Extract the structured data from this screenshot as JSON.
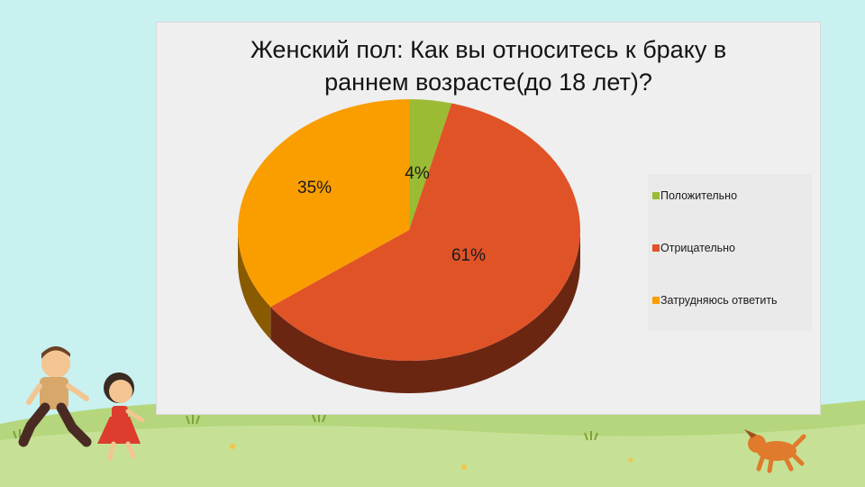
{
  "chart_data": {
    "type": "pie",
    "title_lines": [
      "Женский пол: Как вы относитесь к браку в",
      "раннем возрасте(до 18 лет)?"
    ],
    "categories": [
      "Положительно",
      "Отрицательно",
      "Затрудняюсь ответить"
    ],
    "values": [
      4,
      61,
      35
    ],
    "data_labels": [
      "4%",
      "61%",
      "35%"
    ],
    "colors": [
      "#9bbb34",
      "#e05327",
      "#fa9e00"
    ],
    "side_colors": [
      "#5c7019",
      "#6b2612",
      "#8a5a00"
    ],
    "legend_position": "right",
    "three_d": true
  },
  "colors": {
    "background": "#c8f1f0",
    "panel": "#efefef",
    "grass": "#c2df8e",
    "grass_dark": "#aacd72"
  },
  "decoration": {
    "illustrations": [
      "boy-running",
      "girl-running",
      "dog"
    ]
  }
}
